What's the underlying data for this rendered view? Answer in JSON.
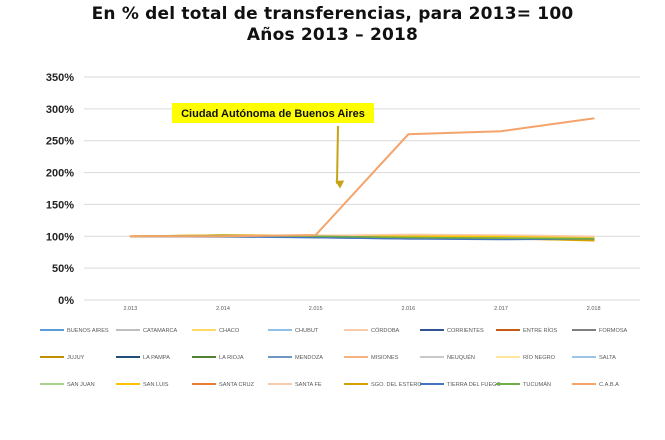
{
  "chart_data": {
    "type": "line",
    "title": "En % del total de transferencias, para 2013= 100",
    "subtitle": "Años 2013 – 2018",
    "xlabel": "",
    "ylabel": "",
    "categories": [
      "2.013",
      "2.014",
      "2.015",
      "2.016",
      "2.017",
      "2.018"
    ],
    "ylim": [
      0,
      350
    ],
    "yticks": [
      0,
      50,
      100,
      150,
      200,
      250,
      300,
      350
    ],
    "ytick_suffix": "%",
    "grid": "horizontal",
    "legend_position": "bottom",
    "annotation": {
      "text": "Ciudad Autónoma de Buenos Aires",
      "target_series": "C.A.B.A",
      "background": "#ffff00",
      "arrow_color": "#c8a415"
    },
    "series": [
      {
        "name": "BUENOS AIRES",
        "color": "#5b9bd5",
        "values": [
          100,
          99,
          98,
          96,
          97,
          97
        ]
      },
      {
        "name": "CATAMARCA",
        "color": "#bfbfbf",
        "values": [
          100,
          101,
          100,
          101,
          100,
          99
        ]
      },
      {
        "name": "CHACO",
        "color": "#ffd966",
        "values": [
          100,
          101,
          99,
          98,
          99,
          98
        ]
      },
      {
        "name": "CHUBUT",
        "color": "#8fc1e8",
        "values": [
          100,
          100,
          99,
          97,
          98,
          96
        ]
      },
      {
        "name": "CÓRDOBA",
        "color": "#f8cbad",
        "values": [
          100,
          101,
          100,
          99,
          100,
          99
        ]
      },
      {
        "name": "CORRIENTES",
        "color": "#2f5597",
        "values": [
          100,
          100,
          99,
          97,
          97,
          96
        ]
      },
      {
        "name": "ENTRE RÍOS",
        "color": "#c55a11",
        "values": [
          100,
          100,
          99,
          98,
          98,
          97
        ]
      },
      {
        "name": "FORMOSA",
        "color": "#7f7f7f",
        "values": [
          100,
          101,
          100,
          98,
          98,
          97
        ]
      },
      {
        "name": "JUJUY",
        "color": "#bf8f00",
        "values": [
          100,
          102,
          101,
          99,
          99,
          98
        ]
      },
      {
        "name": "LA PAMPA",
        "color": "#1f4e79",
        "values": [
          100,
          100,
          99,
          97,
          97,
          96
        ]
      },
      {
        "name": "LA RIOJA",
        "color": "#548235",
        "values": [
          100,
          101,
          100,
          98,
          98,
          97
        ]
      },
      {
        "name": "MENDOZA",
        "color": "#6f97c4",
        "values": [
          100,
          100,
          99,
          98,
          98,
          97
        ]
      },
      {
        "name": "MISIONES",
        "color": "#f4b183",
        "values": [
          100,
          101,
          100,
          98,
          99,
          98
        ]
      },
      {
        "name": "NEUQUÉN",
        "color": "#c9c9c9",
        "values": [
          100,
          101,
          101,
          100,
          100,
          99
        ]
      },
      {
        "name": "RÍO NEGRO",
        "color": "#ffe699",
        "values": [
          100,
          101,
          100,
          99,
          99,
          98
        ]
      },
      {
        "name": "SALTA",
        "color": "#9dc3e6",
        "values": [
          100,
          100,
          99,
          98,
          98,
          97
        ]
      },
      {
        "name": "SAN JUAN",
        "color": "#a9d18e",
        "values": [
          100,
          101,
          100,
          99,
          99,
          98
        ]
      },
      {
        "name": "SAN LUIS",
        "color": "#ffc000",
        "values": [
          100,
          102,
          101,
          100,
          100,
          99
        ]
      },
      {
        "name": "SANTA CRUZ",
        "color": "#ed7d31",
        "values": [
          100,
          100,
          99,
          97,
          96,
          94
        ]
      },
      {
        "name": "SANTA FE",
        "color": "#f8cbad",
        "values": [
          100,
          101,
          101,
          103,
          102,
          100
        ]
      },
      {
        "name": "SGO. DEL ESTERO",
        "color": "#d6a000",
        "values": [
          100,
          101,
          100,
          98,
          97,
          93
        ]
      },
      {
        "name": "TIERRA DEL FUEGO",
        "color": "#4472c4",
        "values": [
          100,
          100,
          98,
          96,
          95,
          96
        ]
      },
      {
        "name": "TUCUMÁN",
        "color": "#70ad47",
        "values": [
          100,
          101,
          100,
          98,
          97,
          96
        ]
      },
      {
        "name": "C.A.B.A",
        "color": "#f4a46b",
        "values": [
          100,
          100,
          102,
          260,
          265,
          285
        ]
      }
    ]
  }
}
